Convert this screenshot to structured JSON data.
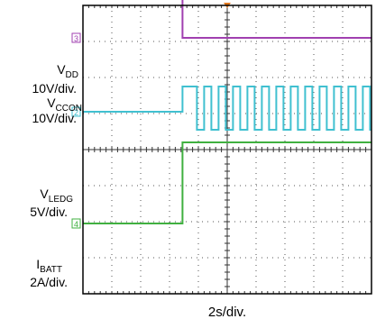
{
  "chart_data": {
    "type": "line",
    "title": "",
    "xlabel": "2s/div.",
    "grid": true,
    "xlim": [
      -5,
      5
    ],
    "divisions": {
      "horizontal": 10,
      "vertical": 8
    },
    "series": [
      {
        "marker": "1",
        "label_main": "V",
        "label_sub": "DD",
        "scale": "10V/div.",
        "color": "#1f4aa8",
        "points": [
          [
            -5,
            5.35
          ],
          [
            -1.55,
            5.35
          ],
          [
            -1.55,
            7.05
          ],
          [
            5,
            7.05
          ]
        ]
      },
      {
        "marker": "3",
        "label_main": "V",
        "label_sub": "CCON",
        "scale": "10V/div.",
        "color": "#a040b0",
        "points": [
          [
            -5,
            5.05
          ],
          [
            -1.55,
            5.05
          ],
          [
            -1.55,
            3.1
          ],
          [
            5,
            3.1
          ]
        ]
      },
      {
        "marker": "2",
        "label_main": "V",
        "label_sub": "LEDG",
        "scale": "5V/div.",
        "color": "#40c0d0",
        "points": [
          [
            -5,
            1.05
          ],
          [
            -1.55,
            1.05
          ],
          [
            -1.55,
            1.75
          ]
        ],
        "square_wave": {
          "start": -1.05,
          "end": 5,
          "period": 0.5,
          "duty": 0.5,
          "low": 0.55,
          "high": 1.75
        }
      },
      {
        "marker": "4",
        "label_main": "I",
        "label_sub": "BATT",
        "scale": "2A/div.",
        "color": "#40b040",
        "points": [
          [
            -5,
            -2.05
          ],
          [
            -1.55,
            -2.05
          ],
          [
            -1.55,
            0.2
          ],
          [
            5,
            0.2
          ]
        ]
      }
    ]
  }
}
